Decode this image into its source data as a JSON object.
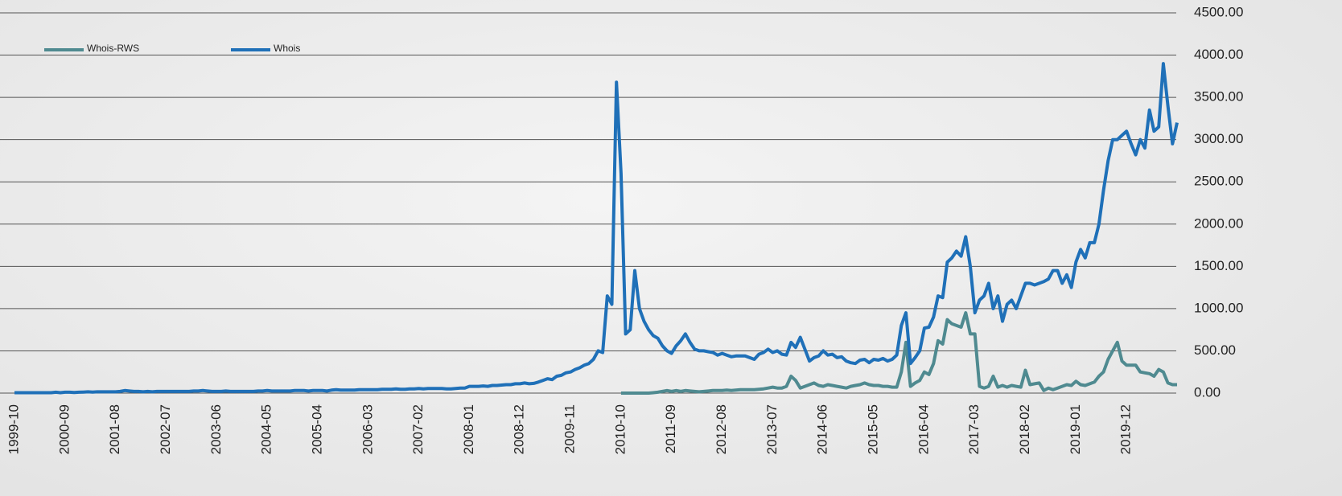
{
  "chart_data": {
    "type": "line",
    "categories": [
      "1999-10",
      null,
      null,
      null,
      null,
      null,
      null,
      null,
      null,
      null,
      null,
      "2000-09",
      null,
      null,
      null,
      null,
      null,
      null,
      null,
      null,
      null,
      null,
      "2001-08",
      null,
      null,
      null,
      null,
      null,
      null,
      null,
      null,
      null,
      null,
      "2002-07",
      null,
      null,
      null,
      null,
      null,
      null,
      null,
      null,
      null,
      null,
      "2003-06",
      null,
      null,
      null,
      null,
      null,
      null,
      null,
      null,
      null,
      null,
      "2004-05",
      null,
      null,
      null,
      null,
      null,
      null,
      null,
      null,
      null,
      null,
      "2005-04",
      null,
      null,
      null,
      null,
      null,
      null,
      null,
      null,
      null,
      null,
      "2006-03",
      null,
      null,
      null,
      null,
      null,
      null,
      null,
      null,
      null,
      null,
      "2007-02",
      null,
      null,
      null,
      null,
      null,
      null,
      null,
      null,
      null,
      null,
      "2008-01",
      null,
      null,
      null,
      null,
      null,
      null,
      null,
      null,
      null,
      null,
      "2008-12",
      null,
      null,
      null,
      null,
      null,
      null,
      null,
      null,
      null,
      null,
      "2009-11",
      null,
      null,
      null,
      null,
      null,
      null,
      null,
      null,
      null,
      null,
      "2010-10",
      null,
      null,
      null,
      null,
      null,
      null,
      null,
      null,
      null,
      null,
      "2011-09",
      null,
      null,
      null,
      null,
      null,
      null,
      null,
      null,
      null,
      null,
      "2012-08",
      null,
      null,
      null,
      null,
      null,
      null,
      null,
      null,
      null,
      null,
      "2013-07",
      null,
      null,
      null,
      null,
      null,
      null,
      null,
      null,
      null,
      null,
      "2014-06",
      null,
      null,
      null,
      null,
      null,
      null,
      null,
      null,
      null,
      null,
      "2015-05",
      null,
      null,
      null,
      null,
      null,
      null,
      null,
      null,
      null,
      null,
      "2016-04",
      null,
      null,
      null,
      null,
      null,
      null,
      null,
      null,
      null,
      null,
      "2017-03",
      null,
      null,
      null,
      null,
      null,
      null,
      null,
      null,
      null,
      null,
      "2018-02",
      null,
      null,
      null,
      null,
      null,
      null,
      null,
      null,
      null,
      null,
      "2019-01",
      null,
      null,
      null,
      null,
      null,
      null,
      null,
      null,
      null,
      null,
      "2019-12",
      null,
      null,
      null,
      null,
      null,
      null,
      null,
      null,
      null,
      null,
      null
    ],
    "series": [
      {
        "name": "Whois-RWS",
        "color": "#4f8a90",
        "values": [
          null,
          null,
          null,
          null,
          null,
          null,
          null,
          null,
          null,
          null,
          null,
          null,
          null,
          null,
          null,
          null,
          null,
          null,
          null,
          null,
          null,
          null,
          null,
          null,
          null,
          null,
          null,
          null,
          null,
          null,
          null,
          null,
          null,
          null,
          null,
          null,
          null,
          null,
          null,
          null,
          null,
          null,
          null,
          null,
          null,
          null,
          null,
          null,
          null,
          null,
          null,
          null,
          null,
          null,
          null,
          null,
          null,
          null,
          null,
          null,
          null,
          null,
          null,
          null,
          null,
          null,
          null,
          null,
          null,
          null,
          null,
          null,
          null,
          null,
          null,
          null,
          null,
          null,
          null,
          null,
          null,
          null,
          null,
          null,
          null,
          null,
          null,
          null,
          null,
          null,
          null,
          null,
          null,
          null,
          null,
          null,
          null,
          null,
          null,
          null,
          null,
          null,
          null,
          null,
          null,
          null,
          null,
          null,
          null,
          null,
          null,
          null,
          null,
          null,
          null,
          null,
          null,
          null,
          null,
          null,
          null,
          null,
          null,
          null,
          null,
          null,
          null,
          null,
          null,
          null,
          null,
          null,
          0,
          0,
          0,
          0,
          0,
          0,
          0,
          5,
          10,
          20,
          30,
          20,
          30,
          20,
          30,
          25,
          20,
          15,
          20,
          25,
          30,
          30,
          30,
          35,
          30,
          35,
          40,
          40,
          40,
          40,
          45,
          50,
          60,
          70,
          60,
          60,
          80,
          200,
          150,
          60,
          80,
          100,
          120,
          90,
          80,
          100,
          90,
          80,
          70,
          60,
          80,
          90,
          100,
          120,
          100,
          90,
          90,
          80,
          80,
          70,
          70,
          250,
          600,
          80,
          120,
          150,
          250,
          220,
          350,
          620,
          580,
          870,
          820,
          800,
          780,
          950,
          700,
          700,
          80,
          60,
          80,
          200,
          70,
          90,
          70,
          90,
          80,
          70,
          270,
          100,
          110,
          120,
          30,
          60,
          40,
          60,
          80,
          100,
          90,
          140,
          100,
          90,
          110,
          130,
          200,
          250,
          400,
          500,
          600,
          380,
          330,
          330,
          330,
          250,
          240,
          230,
          200,
          280,
          250,
          120,
          100,
          100
        ]
      },
      {
        "name": "Whois",
        "color": "#1f70b8",
        "values": [
          5,
          5,
          5,
          5,
          5,
          5,
          5,
          5,
          5,
          10,
          5,
          10,
          10,
          8,
          10,
          12,
          15,
          12,
          15,
          15,
          15,
          15,
          15,
          20,
          30,
          25,
          20,
          20,
          15,
          20,
          15,
          20,
          20,
          20,
          20,
          20,
          20,
          20,
          20,
          25,
          25,
          30,
          25,
          20,
          20,
          20,
          25,
          20,
          20,
          20,
          20,
          20,
          20,
          25,
          25,
          30,
          25,
          25,
          25,
          25,
          25,
          30,
          30,
          30,
          25,
          30,
          30,
          30,
          25,
          35,
          40,
          35,
          35,
          35,
          35,
          40,
          40,
          40,
          40,
          40,
          45,
          45,
          45,
          50,
          45,
          45,
          50,
          50,
          55,
          50,
          55,
          55,
          55,
          55,
          50,
          50,
          55,
          60,
          60,
          80,
          80,
          80,
          85,
          80,
          90,
          90,
          95,
          100,
          100,
          110,
          110,
          120,
          110,
          115,
          130,
          150,
          170,
          160,
          200,
          210,
          240,
          250,
          280,
          300,
          330,
          350,
          400,
          500,
          480,
          1150,
          1050,
          3680,
          2600,
          700,
          750,
          1450,
          1000,
          850,
          750,
          680,
          650,
          560,
          500,
          470,
          560,
          620,
          700,
          600,
          520,
          500,
          500,
          490,
          480,
          450,
          470,
          450,
          430,
          440,
          440,
          440,
          420,
          400,
          460,
          480,
          520,
          480,
          500,
          460,
          450,
          600,
          540,
          660,
          520,
          380,
          420,
          440,
          500,
          450,
          460,
          420,
          430,
          380,
          360,
          350,
          390,
          400,
          360,
          400,
          390,
          410,
          380,
          400,
          450,
          800,
          950,
          350,
          420,
          500,
          770,
          780,
          900,
          1150,
          1130,
          1550,
          1600,
          1680,
          1620,
          1850,
          1500,
          950,
          1100,
          1150,
          1300,
          1000,
          1150,
          850,
          1050,
          1100,
          1000,
          1150,
          1300,
          1300,
          1280,
          1300,
          1320,
          1350,
          1450,
          1450,
          1300,
          1400,
          1250,
          1550,
          1700,
          1600,
          1780,
          1780,
          2000,
          2400,
          2750,
          3000,
          3000,
          3050,
          3100,
          2950,
          2820,
          3000,
          2900,
          3350,
          3100,
          3150,
          3900,
          3400,
          2950,
          3200
        ]
      }
    ],
    "ylim": [
      0,
      4500
    ],
    "yticks": [
      {
        "value": 0,
        "label": "0.00"
      },
      {
        "value": 500,
        "label": "500.00"
      },
      {
        "value": 1000,
        "label": "1000.00"
      },
      {
        "value": 1500,
        "label": "1500.00"
      },
      {
        "value": 2000,
        "label": "2000.00"
      },
      {
        "value": 2500,
        "label": "2500.00"
      },
      {
        "value": 3000,
        "label": "3000.00"
      },
      {
        "value": 3500,
        "label": "3500.00"
      },
      {
        "value": 4000,
        "label": "4000.00"
      },
      {
        "value": 4500,
        "label": "4500.00"
      }
    ],
    "grid": true,
    "legend": "top-left"
  }
}
